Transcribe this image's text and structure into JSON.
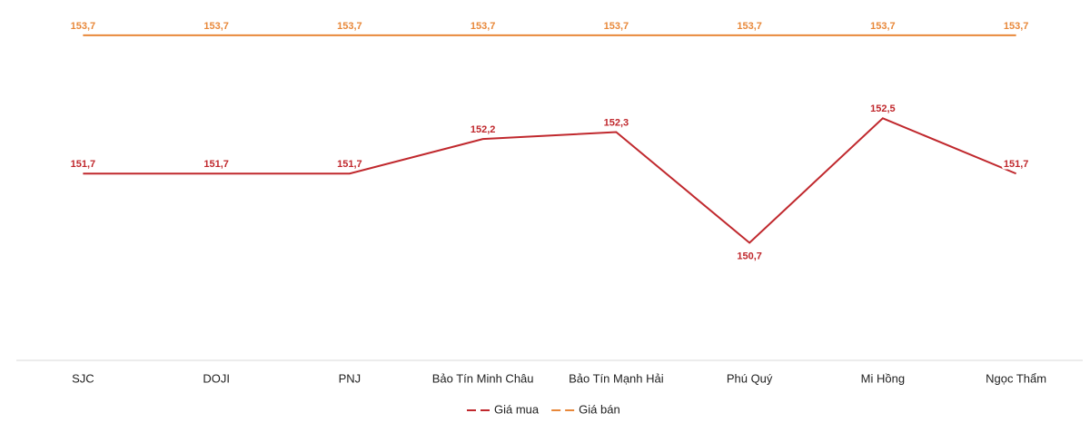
{
  "chart_data": {
    "type": "line",
    "categories": [
      "SJC",
      "DOJI",
      "PNJ",
      "Bảo Tín Minh Châu",
      "Bảo Tín Mạnh Hải",
      "Phú Quý",
      "Mi Hồng",
      "Ngọc Thẩm"
    ],
    "series": [
      {
        "name": "Giá mua",
        "color": "#c0282d",
        "values": [
          151.7,
          151.7,
          151.7,
          152.2,
          152.3,
          150.7,
          152.5,
          151.7
        ],
        "value_labels": [
          "151,7",
          "151,7",
          "151,7",
          "152,2",
          "152,3",
          "150,7",
          "152,5",
          "151,7"
        ]
      },
      {
        "name": "Giá bán",
        "color": "#e8883a",
        "values": [
          153.7,
          153.7,
          153.7,
          153.7,
          153.7,
          153.7,
          153.7,
          153.7
        ],
        "value_labels": [
          "153,7",
          "153,7",
          "153,7",
          "153,7",
          "153,7",
          "153,7",
          "153,7",
          "153,7"
        ]
      }
    ],
    "ylim": [
      149,
      154
    ],
    "legend": "bottom"
  }
}
